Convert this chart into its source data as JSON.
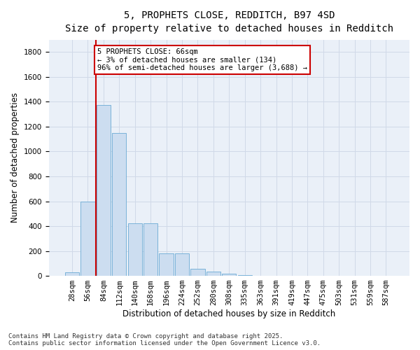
{
  "title_line1": "5, PROPHETS CLOSE, REDDITCH, B97 4SD",
  "title_line2": "Size of property relative to detached houses in Redditch",
  "xlabel": "Distribution of detached houses by size in Redditch",
  "ylabel": "Number of detached properties",
  "bar_color": "#ccddf0",
  "bar_edge_color": "#6aaad4",
  "grid_color": "#d0d9e8",
  "background_color": "#eaf0f8",
  "categories": [
    "28sqm",
    "56sqm",
    "84sqm",
    "112sqm",
    "140sqm",
    "168sqm",
    "196sqm",
    "224sqm",
    "252sqm",
    "280sqm",
    "308sqm",
    "335sqm",
    "363sqm",
    "391sqm",
    "419sqm",
    "447sqm",
    "475sqm",
    "503sqm",
    "531sqm",
    "559sqm",
    "587sqm"
  ],
  "values": [
    28,
    600,
    1375,
    1150,
    420,
    420,
    178,
    178,
    58,
    34,
    15,
    5,
    2,
    0,
    0,
    0,
    3,
    0,
    0,
    0,
    0
  ],
  "ylim": [
    0,
    1900
  ],
  "yticks": [
    0,
    200,
    400,
    600,
    800,
    1000,
    1200,
    1400,
    1600,
    1800
  ],
  "property_line_x": 1.5,
  "annotation_text": "5 PROPHETS CLOSE: 66sqm\n← 3% of detached houses are smaller (134)\n96% of semi-detached houses are larger (3,688) →",
  "annotation_box_color": "#ffffff",
  "annotation_box_edge": "#cc0000",
  "annotation_line_color": "#cc0000",
  "footer_line1": "Contains HM Land Registry data © Crown copyright and database right 2025.",
  "footer_line2": "Contains public sector information licensed under the Open Government Licence v3.0.",
  "title_fontsize": 10,
  "subtitle_fontsize": 9,
  "axis_label_fontsize": 8.5,
  "tick_fontsize": 7.5,
  "annotation_fontsize": 7.5,
  "footer_fontsize": 6.5
}
